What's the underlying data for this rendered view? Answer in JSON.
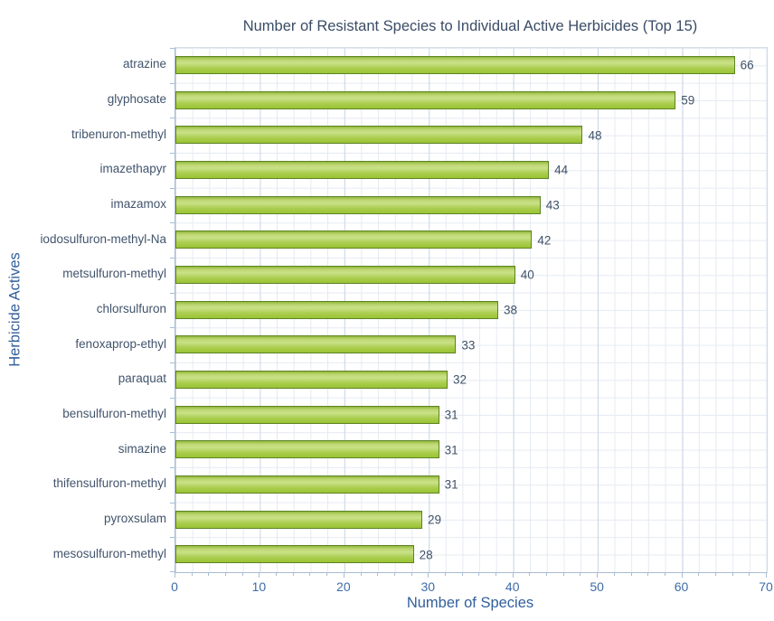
{
  "chart_data": {
    "type": "bar",
    "orientation": "horizontal",
    "title": "Number of Resistant Species to Individual Active Herbicides (Top 15)",
    "xlabel": "Number of Species",
    "ylabel": "Herbicide Actives",
    "categories": [
      "atrazine",
      "glyphosate",
      "tribenuron-methyl",
      "imazethapyr",
      "imazamox",
      "iodosulfuron-methyl-Na",
      "metsulfuron-methyl",
      "chlorsulfuron",
      "fenoxaprop-ethyl",
      "paraquat",
      "bensulfuron-methyl",
      "simazine",
      "thifensulfuron-methyl",
      "pyroxsulam",
      "mesosulfuron-methyl"
    ],
    "values": [
      66,
      59,
      48,
      44,
      43,
      42,
      40,
      38,
      33,
      32,
      31,
      31,
      31,
      29,
      28
    ],
    "xlim": [
      0,
      70
    ],
    "xticks": [
      0,
      10,
      20,
      30,
      40,
      50,
      60,
      70
    ],
    "minor_tick_step": 2,
    "grid": true,
    "legend": false,
    "data_labels": true,
    "colors": {
      "bar_fill": "#a6cb48",
      "bar_border": "#5d8325",
      "title_text": "#3a4c66",
      "axis_title_text": "#32609c",
      "tick_label_text": "#3e6ca8",
      "category_label_text": "#42546c",
      "value_label_text": "#3f5168",
      "gridline_minor": "#e5eaf2",
      "gridline_major": "#cdd8e6",
      "axis_line": "#a9bcd4",
      "background": "#ffffff"
    }
  }
}
